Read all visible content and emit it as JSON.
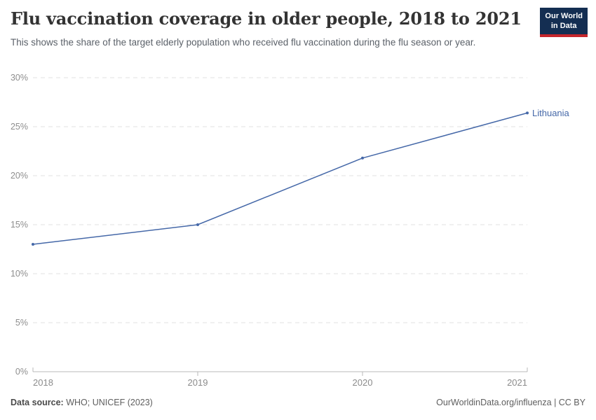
{
  "header": {
    "title": "Flu vaccination coverage in older people, 2018 to 2021",
    "subtitle": "This shows the share of the target elderly population who received flu vaccination during the flu season or year.",
    "logo": {
      "line1": "Our World",
      "line2": "in Data"
    }
  },
  "chart_data": {
    "type": "line",
    "title": "Flu vaccination coverage in older people, 2018 to 2021",
    "x": [
      2018,
      2019,
      2020,
      2021
    ],
    "x_labels": [
      "2018",
      "2019",
      "2020",
      "2021"
    ],
    "series": [
      {
        "name": "Lithuania",
        "values": [
          13,
          15,
          21.8,
          26.4
        ],
        "color": "#4568a8"
      }
    ],
    "ylim": [
      0,
      30
    ],
    "yticks": [
      0,
      5,
      10,
      15,
      20,
      25,
      30
    ],
    "ytick_suffix": "%",
    "xlabel": "",
    "ylabel": "",
    "grid": "horizontal-dashed",
    "legend": "end-of-line-label"
  },
  "footer": {
    "source_label": "Data source:",
    "source_value": "WHO; UNICEF (2023)",
    "link": "OurWorldinData.org/influenza | CC BY"
  },
  "colors": {
    "line": "#4568a8",
    "logo_bg": "#142e52",
    "logo_red": "#c5262c",
    "grid": "#e0e0e0",
    "axis": "#b8b8b8"
  }
}
